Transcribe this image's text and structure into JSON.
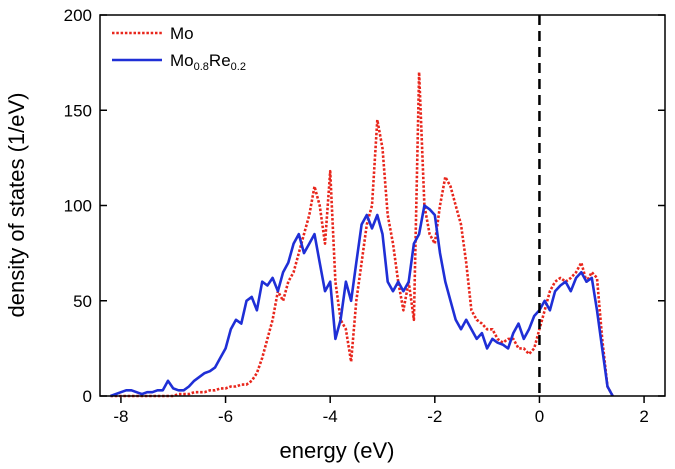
{
  "chart_data": {
    "type": "line",
    "xlabel": "energy (eV)",
    "ylabel": "density of states (1/eV)",
    "xlim": [
      -8.4,
      2.4
    ],
    "ylim": [
      0,
      200
    ],
    "xticks": [
      -8,
      -6,
      -4,
      -2,
      0,
      2
    ],
    "yticks": [
      0,
      50,
      100,
      150,
      200
    ],
    "vline": 0,
    "legend": "upper left",
    "x": [
      -8.2,
      -8.1,
      -8,
      -7.9,
      -7.8,
      -7.7,
      -7.6,
      -7.5,
      -7.4,
      -7.3,
      -7.2,
      -7.1,
      -7,
      -6.9,
      -6.8,
      -6.7,
      -6.6,
      -6.5,
      -6.4,
      -6.3,
      -6.2,
      -6.1,
      -6,
      -5.9,
      -5.8,
      -5.7,
      -5.6,
      -5.5,
      -5.4,
      -5.3,
      -5.2,
      -5.1,
      -5,
      -4.9,
      -4.8,
      -4.7,
      -4.6,
      -4.5,
      -4.4,
      -4.3,
      -4.2,
      -4.1,
      -4,
      -3.9,
      -3.8,
      -3.7,
      -3.6,
      -3.5,
      -3.4,
      -3.3,
      -3.2,
      -3.1,
      -3,
      -2.9,
      -2.8,
      -2.7,
      -2.6,
      -2.5,
      -2.4,
      -2.3,
      -2.2,
      -2.1,
      -2,
      -1.9,
      -1.8,
      -1.7,
      -1.6,
      -1.5,
      -1.4,
      -1.3,
      -1.2,
      -1.1,
      -1,
      -0.9,
      -0.8,
      -0.7,
      -0.6,
      -0.5,
      -0.4,
      -0.3,
      -0.2,
      -0.1,
      0,
      0.1,
      0.2,
      0.3,
      0.4,
      0.5,
      0.6,
      0.7,
      0.8,
      0.9,
      1,
      1.1,
      1.2,
      1.3,
      1.4
    ],
    "series": [
      {
        "name": "Mo",
        "color": "#e8261c",
        "style": "dotted",
        "values": [
          0,
          0,
          0,
          0,
          0,
          0,
          0,
          0,
          0,
          0,
          0,
          0,
          0,
          1,
          1,
          1,
          2,
          2,
          2,
          3,
          3,
          4,
          4,
          5,
          5,
          6,
          6,
          8,
          12,
          20,
          30,
          40,
          55,
          50,
          60,
          65,
          75,
          85,
          95,
          110,
          100,
          80,
          118,
          60,
          40,
          35,
          18,
          50,
          70,
          90,
          100,
          145,
          130,
          95,
          80,
          60,
          45,
          60,
          40,
          170,
          100,
          85,
          80,
          100,
          115,
          110,
          100,
          90,
          70,
          45,
          40,
          38,
          35,
          35,
          30,
          28,
          30,
          30,
          25,
          25,
          22,
          25,
          35,
          45,
          55,
          60,
          62,
          60,
          62,
          65,
          70,
          60,
          65,
          62,
          30,
          5,
          0
        ]
      },
      {
        "name": "Mo0.8Re0.2",
        "color": "#1f2fd6",
        "style": "solid",
        "values": [
          0,
          1,
          2,
          3,
          3,
          2,
          1,
          2,
          2,
          3,
          3,
          8,
          4,
          3,
          3,
          5,
          8,
          10,
          12,
          13,
          15,
          20,
          25,
          35,
          40,
          38,
          50,
          52,
          45,
          60,
          58,
          62,
          55,
          65,
          70,
          80,
          85,
          75,
          80,
          85,
          70,
          55,
          60,
          30,
          40,
          60,
          50,
          70,
          90,
          95,
          88,
          95,
          85,
          60,
          55,
          60,
          55,
          60,
          80,
          85,
          100,
          98,
          95,
          75,
          60,
          50,
          40,
          35,
          40,
          35,
          30,
          33,
          25,
          30,
          28,
          27,
          25,
          33,
          38,
          30,
          35,
          42,
          45,
          50,
          45,
          55,
          58,
          60,
          55,
          62,
          65,
          60,
          62,
          45,
          25,
          5,
          0
        ]
      }
    ]
  }
}
